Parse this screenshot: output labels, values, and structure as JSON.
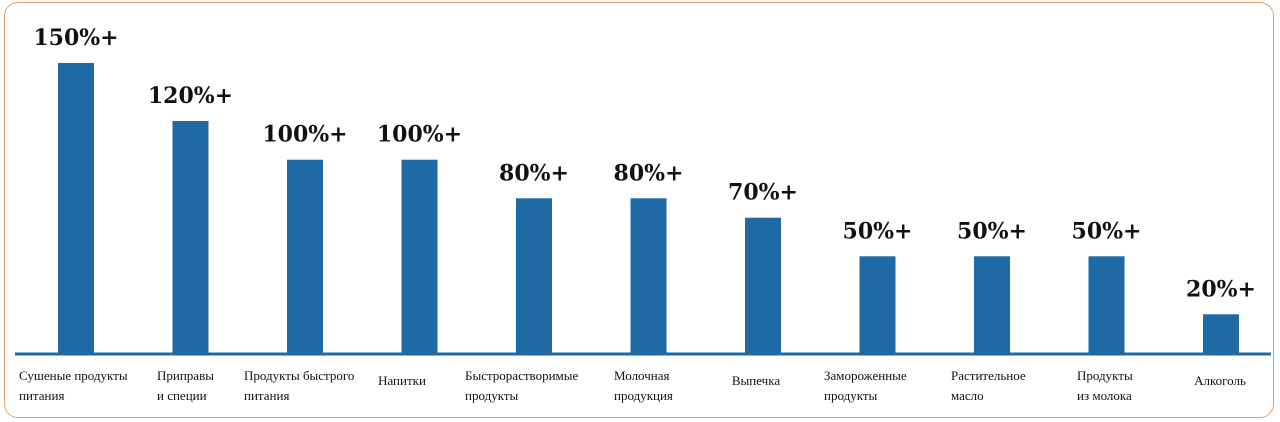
{
  "chart_data": {
    "type": "bar",
    "categories": [
      [
        "Сушеные продукты",
        "питания"
      ],
      [
        "Приправы",
        "и специи"
      ],
      [
        "Продукты быстрого",
        "питания"
      ],
      [
        "Напитки"
      ],
      [
        "Быстрорастворимые",
        "продукты"
      ],
      [
        "Молочная",
        "продукция"
      ],
      [
        "Выпечка"
      ],
      [
        "Замороженные",
        "продукты"
      ],
      [
        "Растительное",
        "масло"
      ],
      [
        "Продукты",
        "из молока"
      ],
      [
        "Алкоголь"
      ]
    ],
    "values": [
      150,
      120,
      100,
      100,
      80,
      80,
      70,
      50,
      50,
      50,
      20
    ],
    "value_labels": [
      "150%+",
      "120%+",
      "100%+",
      "100%+",
      "80%+",
      "80%+",
      "70%+",
      "50%+",
      "50%+",
      "50%+",
      "20%+"
    ],
    "ylim": [
      0,
      150
    ],
    "grid": false,
    "colors": {
      "bar": "#1f6aa5",
      "axis": "#1f6aa5"
    }
  }
}
